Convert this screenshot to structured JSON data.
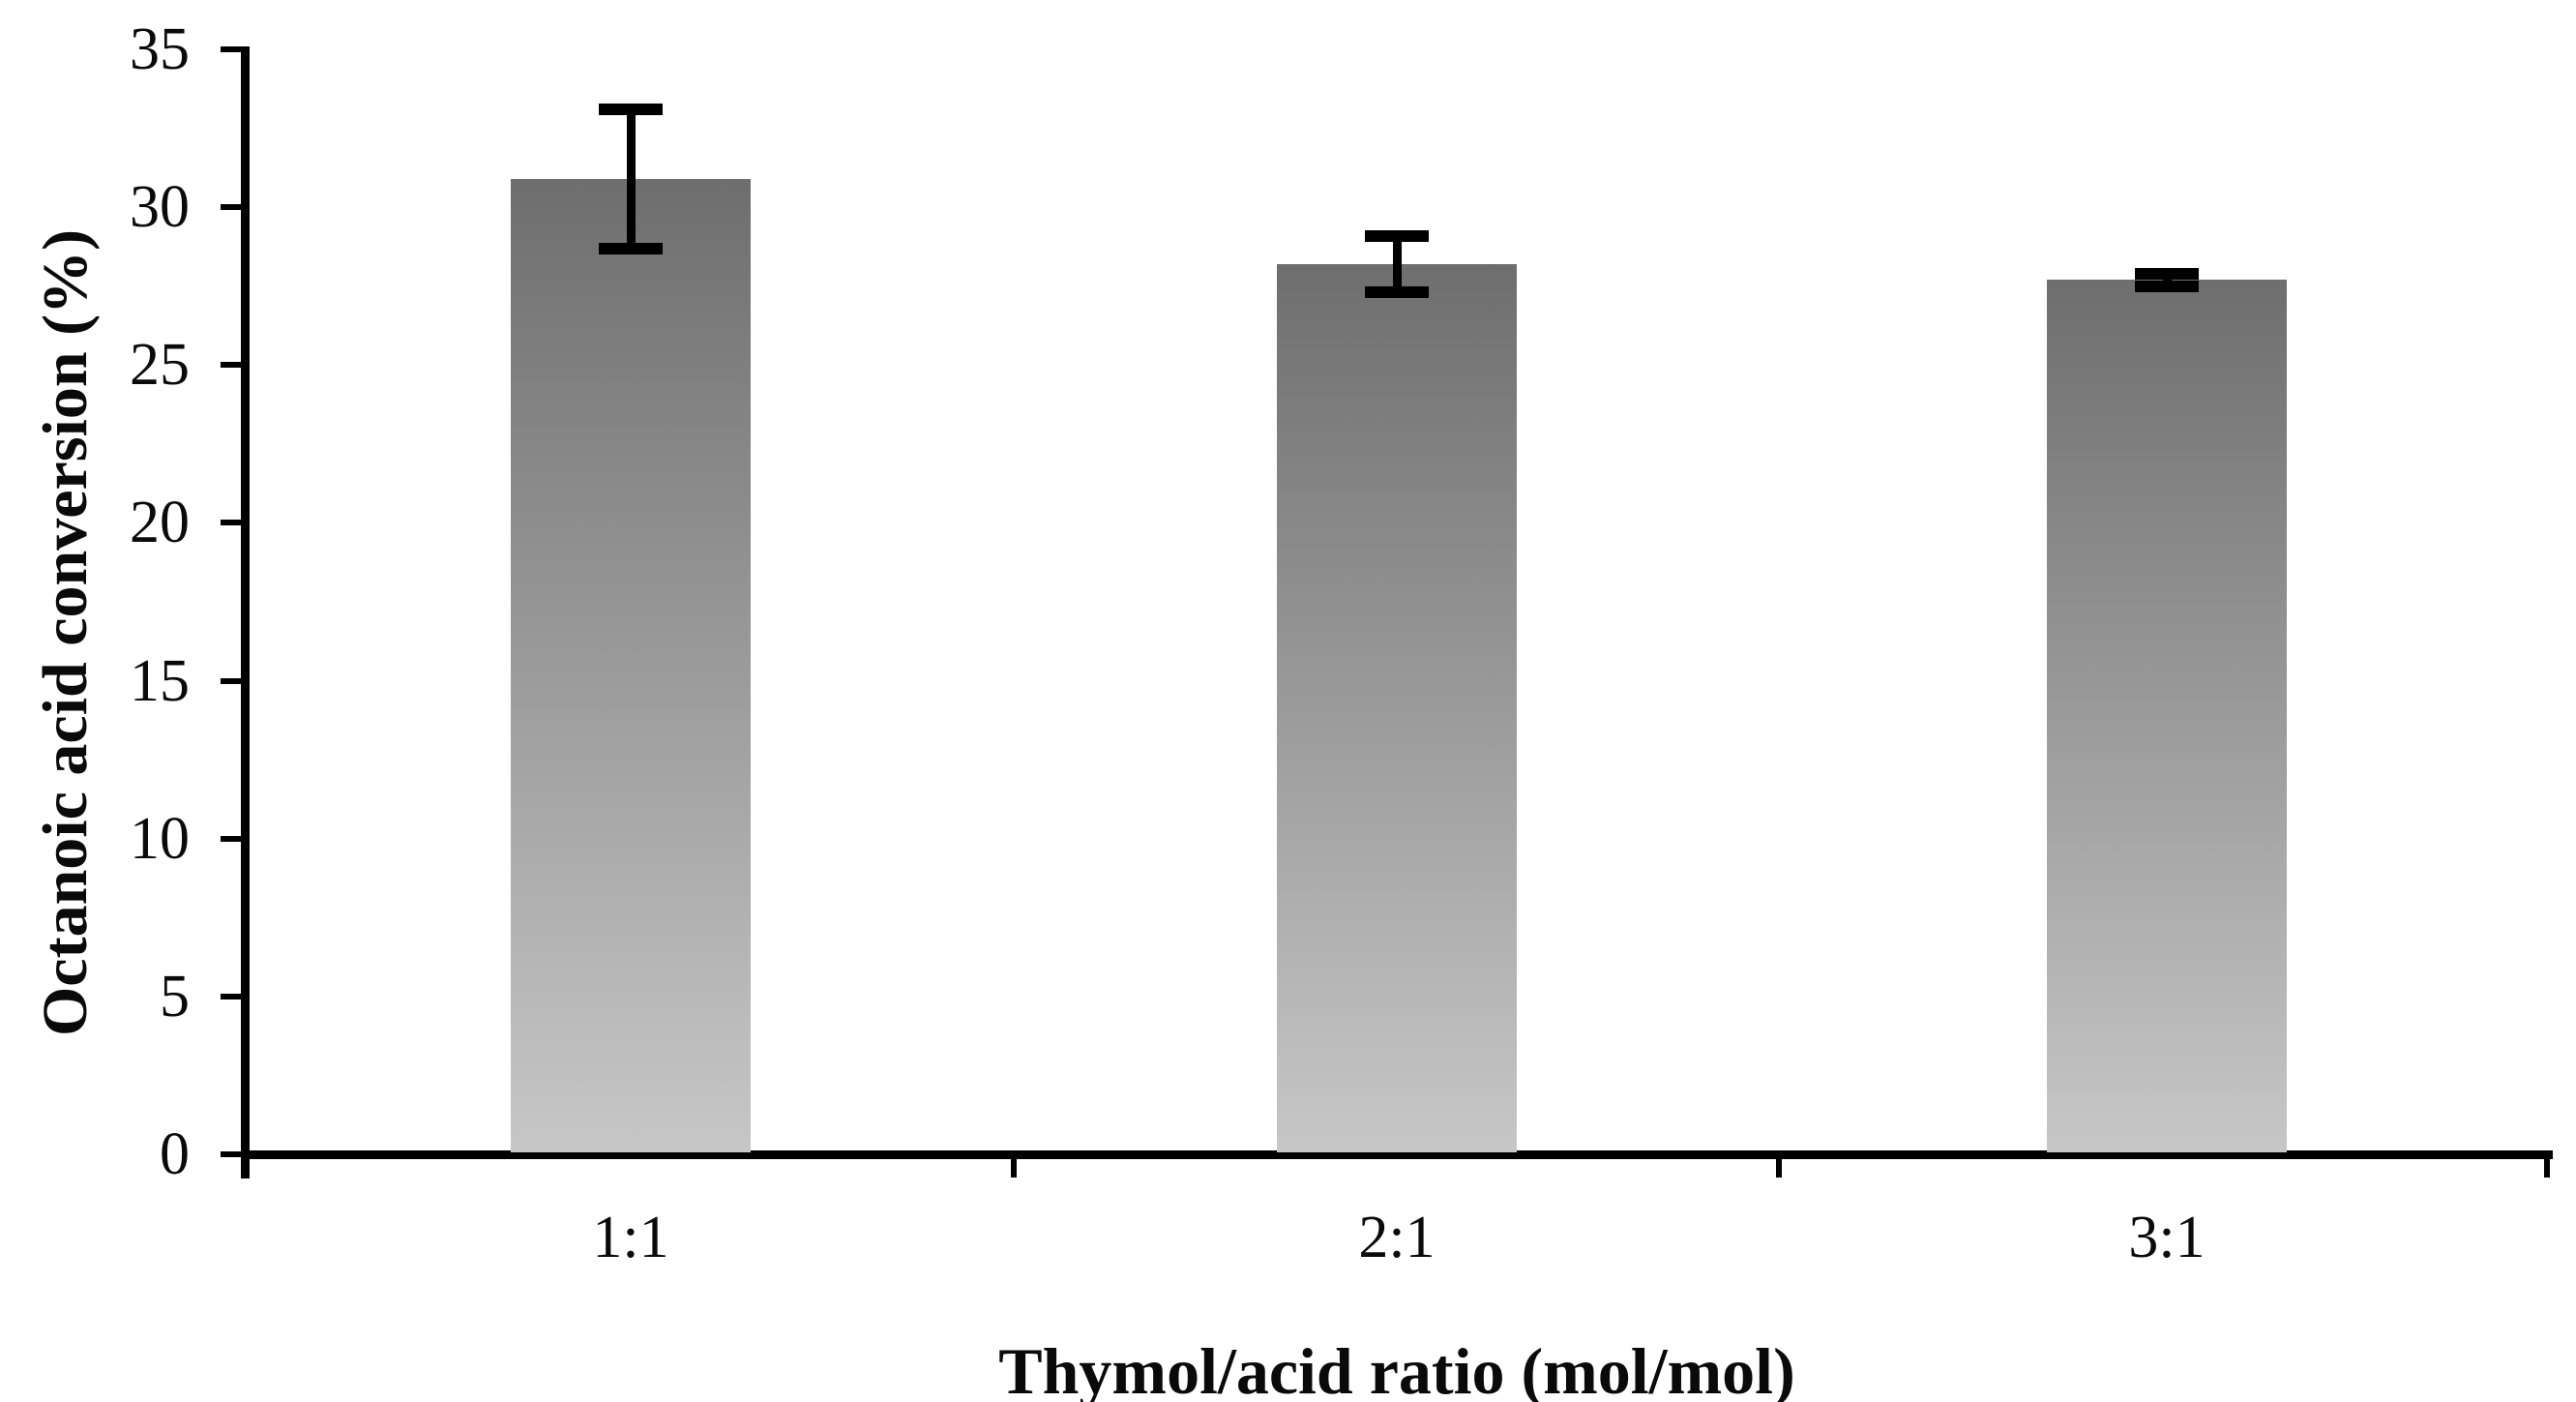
{
  "chart_data": {
    "type": "bar",
    "title": "",
    "categories": [
      "1:1",
      "2:1",
      "3:1"
    ],
    "values": [
      30.9,
      28.2,
      27.7
    ],
    "error_bars": [
      2.2,
      0.9,
      0.2
    ],
    "xlabel": "Thymol/acid ratio (mol/mol)",
    "ylabel": "Octanoic acid conversion (%)",
    "ylim": [
      0,
      35
    ],
    "yticks": [
      0,
      5,
      10,
      15,
      20,
      25,
      30,
      35
    ],
    "grid": false,
    "legend_position": "none",
    "bar_fill_top": "#6e6e6e",
    "bar_fill_bottom": "#c7c7c7",
    "axis_color": "#000000",
    "background": "#ffffff"
  }
}
